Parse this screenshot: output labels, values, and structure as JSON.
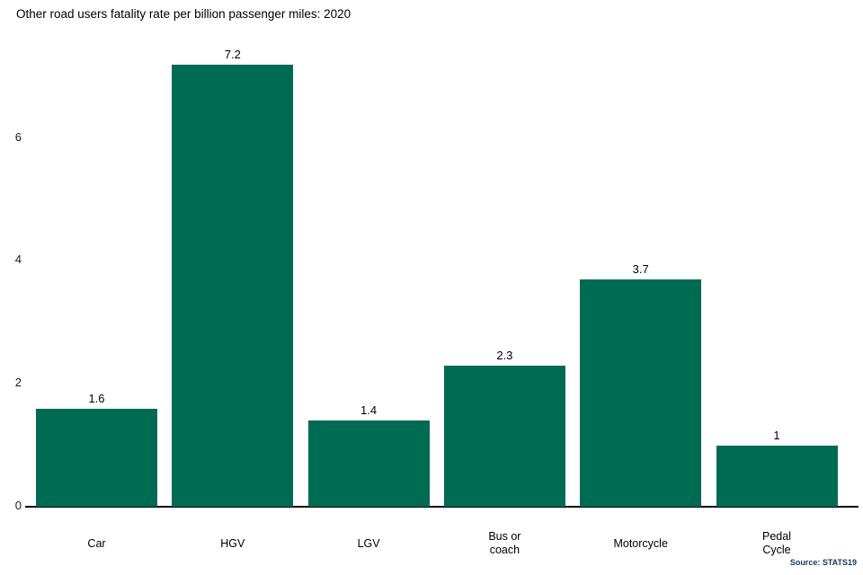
{
  "title": "Other road users fatality rate per billion passenger miles: 2020",
  "source": "Source: STATS19",
  "colors": {
    "bar": "#006b53",
    "axis": "#000000",
    "text": "#000000",
    "tick_text": "#1a1a1a",
    "source_text": "#17375e",
    "background": "#ffffff"
  },
  "chart_data": {
    "type": "bar",
    "title": "Other road users fatality rate per billion passenger miles: 2020",
    "categories": [
      "Car",
      "HGV",
      "LGV",
      "Bus or coach",
      "Motorcycle",
      "Pedal Cycle"
    ],
    "category_lines": [
      [
        "Car"
      ],
      [
        "HGV"
      ],
      [
        "LGV"
      ],
      [
        "Bus or",
        "coach"
      ],
      [
        "Motorcycle"
      ],
      [
        "Pedal",
        "Cycle"
      ]
    ],
    "values": [
      1.6,
      7.2,
      1.4,
      2.3,
      3.7,
      1
    ],
    "value_labels": [
      "1.6",
      "7.2",
      "1.4",
      "2.3",
      "3.7",
      "1"
    ],
    "xlabel": "",
    "ylabel": "",
    "ylim": [
      0,
      7.66
    ],
    "yticks": [
      0,
      2,
      4,
      6
    ],
    "grid": false,
    "legend": "none",
    "annotation": "Source: STATS19"
  }
}
